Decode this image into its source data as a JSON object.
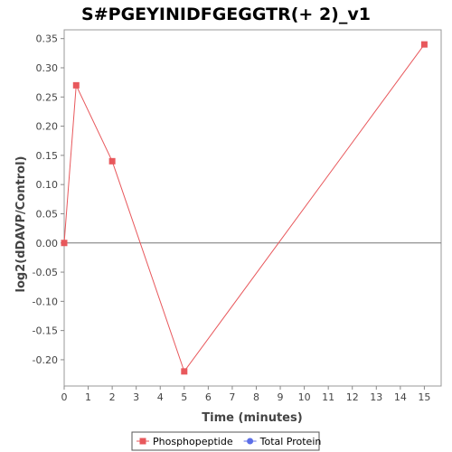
{
  "chart_data": {
    "type": "line",
    "title": "S#PGEYINIDFGEGGTR(+ 2)_v1",
    "xlabel": "Time (minutes)",
    "ylabel": "log2(dDAVP/Control)",
    "xlim": [
      0,
      15.7
    ],
    "ylim": [
      -0.245,
      0.365
    ],
    "x_ticks": [
      0,
      1,
      2,
      3,
      4,
      5,
      6,
      7,
      8,
      9,
      10,
      11,
      12,
      13,
      14,
      15
    ],
    "y_ticks": [
      -0.2,
      -0.15,
      -0.1,
      -0.05,
      0.0,
      0.05,
      0.1,
      0.15,
      0.2,
      0.25,
      0.3,
      0.35
    ],
    "y_tick_labels": [
      "-0.20",
      "-0.15",
      "-0.10",
      "-0.05",
      "0.00",
      "0.05",
      "0.10",
      "0.15",
      "0.20",
      "0.25",
      "0.30",
      "0.35"
    ],
    "zero_line": true,
    "grid": false,
    "legend_position": "bottom-center",
    "series": [
      {
        "name": "Phosphopeptide",
        "color": "#e8585c",
        "marker": "square",
        "x": [
          0,
          0.5,
          2,
          5,
          15
        ],
        "values": [
          0.0,
          0.27,
          0.14,
          -0.22,
          0.34
        ]
      },
      {
        "name": "Total Protein",
        "color": "#5b6ee8",
        "marker": "circle",
        "x": [],
        "values": []
      }
    ]
  }
}
